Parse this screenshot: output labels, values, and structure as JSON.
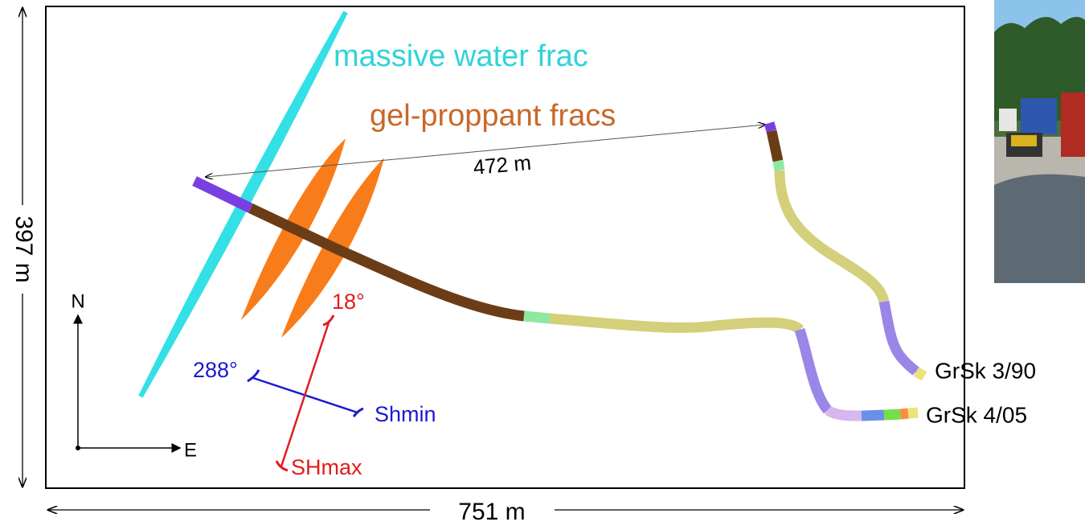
{
  "annotations": {
    "water_frac": "massive water frac",
    "gel_fracs": "gel-proppant fracs",
    "distance": "472 m",
    "height": "397 m",
    "width": "751 m"
  },
  "compass": {
    "north": "N",
    "east": "E"
  },
  "stress": {
    "shmin_azimuth": "288°",
    "shmin": "Shmin",
    "shmax_azimuth": "18°",
    "shmax": "SHmax"
  },
  "wells": [
    {
      "label": "GrSk 3/90"
    },
    {
      "label": "GrSk 4/05"
    }
  ]
}
